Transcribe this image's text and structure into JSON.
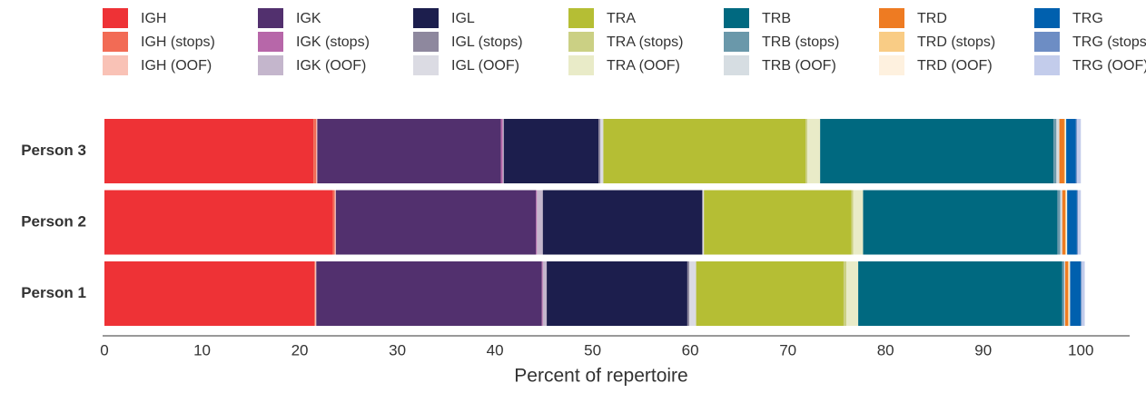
{
  "chart_data": {
    "type": "stacked-barh",
    "xlabel": "Percent of repertoire",
    "categories": [
      "Person 3",
      "Person 2",
      "Person 1"
    ],
    "xlim": [
      0,
      105
    ],
    "xticks": [
      0,
      10,
      20,
      30,
      40,
      50,
      60,
      70,
      80,
      90,
      100
    ],
    "grid": false,
    "series": [
      {
        "name": "IGH",
        "color": "#ee3236",
        "values": [
          21.4,
          23.4,
          21.5
        ]
      },
      {
        "name": "IGH (stops)",
        "color": "#f26b55",
        "values": [
          0.3,
          0.2,
          0.1
        ]
      },
      {
        "name": "IGH (OOF)",
        "color": "#f9c2b6",
        "values": [
          0.1,
          0.1,
          0.1
        ]
      },
      {
        "name": "IGK",
        "color": "#52306e",
        "values": [
          18.8,
          20.5,
          23.1
        ]
      },
      {
        "name": "IGK (stops)",
        "color": "#b767a9",
        "values": [
          0.2,
          0.1,
          0.1
        ]
      },
      {
        "name": "IGK (OOF)",
        "color": "#c4b6cc",
        "values": [
          0.1,
          0.6,
          0.4
        ]
      },
      {
        "name": "IGL",
        "color": "#1c1e4d",
        "values": [
          9.7,
          16.3,
          14.4
        ]
      },
      {
        "name": "IGL (stops)",
        "color": "#8e889e",
        "values": [
          0.2,
          0.1,
          0.2
        ]
      },
      {
        "name": "IGL (OOF)",
        "color": "#dbdbe3",
        "values": [
          0.3,
          0.1,
          0.7
        ]
      },
      {
        "name": "TRA",
        "color": "#b5be34",
        "values": [
          20.7,
          15.1,
          15.1
        ]
      },
      {
        "name": "TRA (stops)",
        "color": "#cbd084",
        "values": [
          0.2,
          0.2,
          0.3
        ]
      },
      {
        "name": "TRA (OOF)",
        "color": "#e9ebc8",
        "values": [
          1.3,
          1.0,
          1.2
        ]
      },
      {
        "name": "TRB",
        "color": "#006980",
        "values": [
          23.9,
          19.9,
          20.9
        ]
      },
      {
        "name": "TRB (stops)",
        "color": "#6a98aa",
        "values": [
          0.3,
          0.3,
          0.2
        ]
      },
      {
        "name": "TRB (OOF)",
        "color": "#d6dde2",
        "values": [
          0.3,
          0.2,
          0.1
        ]
      },
      {
        "name": "TRD",
        "color": "#ee7b22",
        "values": [
          0.5,
          0.3,
          0.3
        ]
      },
      {
        "name": "TRD (stops)",
        "color": "#f9cc85",
        "values": [
          0.1,
          0.1,
          0.1
        ]
      },
      {
        "name": "TRD (OOF)",
        "color": "#fef1df",
        "values": [
          0.1,
          0.1,
          0.1
        ]
      },
      {
        "name": "TRG",
        "color": "#0060ae",
        "values": [
          1.0,
          1.0,
          1.1
        ]
      },
      {
        "name": "TRG (stops)",
        "color": "#6d8dc4",
        "values": [
          0.1,
          0.1,
          0.1
        ]
      },
      {
        "name": "TRG (OOF)",
        "color": "#c3cceb",
        "values": [
          0.4,
          0.3,
          0.3
        ]
      }
    ]
  }
}
